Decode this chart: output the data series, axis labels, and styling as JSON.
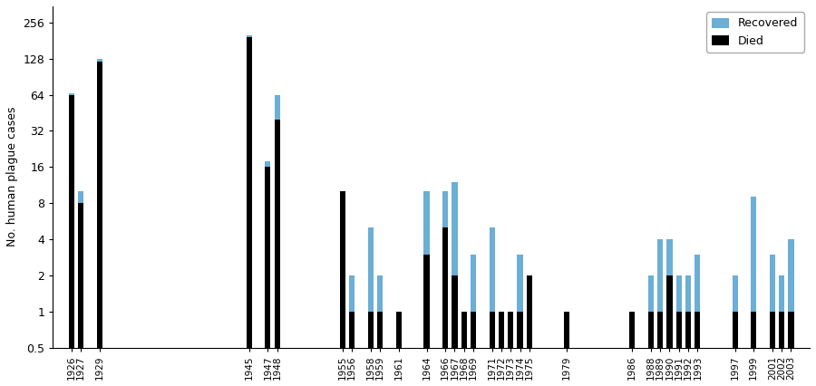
{
  "years": [
    1926,
    1927,
    1929,
    1945,
    1947,
    1948,
    1955,
    1956,
    1958,
    1959,
    1961,
    1964,
    1966,
    1967,
    1968,
    1969,
    1971,
    1972,
    1973,
    1974,
    1975,
    1979,
    1986,
    1988,
    1989,
    1990,
    1991,
    1992,
    1993,
    1997,
    1999,
    2001,
    2002,
    2003
  ],
  "died": [
    64,
    8,
    120,
    192,
    16,
    40,
    10,
    1,
    1,
    1,
    1,
    3,
    5,
    2,
    1,
    1,
    1,
    1,
    1,
    1,
    2,
    1,
    1,
    1,
    1,
    2,
    1,
    1,
    1,
    1,
    1,
    1,
    1,
    1
  ],
  "recovered": [
    2,
    2,
    8,
    10,
    2,
    24,
    0,
    1,
    4,
    1,
    0,
    7,
    5,
    10,
    0,
    2,
    4,
    0,
    0,
    2,
    0,
    0,
    0,
    1,
    3,
    2,
    1,
    1,
    2,
    1,
    8,
    2,
    1,
    3
  ],
  "bar_color_died": "#000000",
  "bar_color_recovered": "#6baed6",
  "ylabel": "No. human plague cases",
  "yticks": [
    0.5,
    1,
    2,
    4,
    8,
    16,
    32,
    64,
    128,
    256
  ],
  "ytick_labels": [
    "0.5",
    "1",
    "2",
    "4",
    "8",
    "16",
    "32",
    "64",
    "128",
    "256"
  ],
  "ylim_log": [
    0.5,
    350
  ],
  "xmin": 1924,
  "xmax": 2005,
  "legend_recovered": "Recovered",
  "legend_died": "Died",
  "background_color": "#ffffff",
  "bar_width": 0.6,
  "edge_color": "none"
}
